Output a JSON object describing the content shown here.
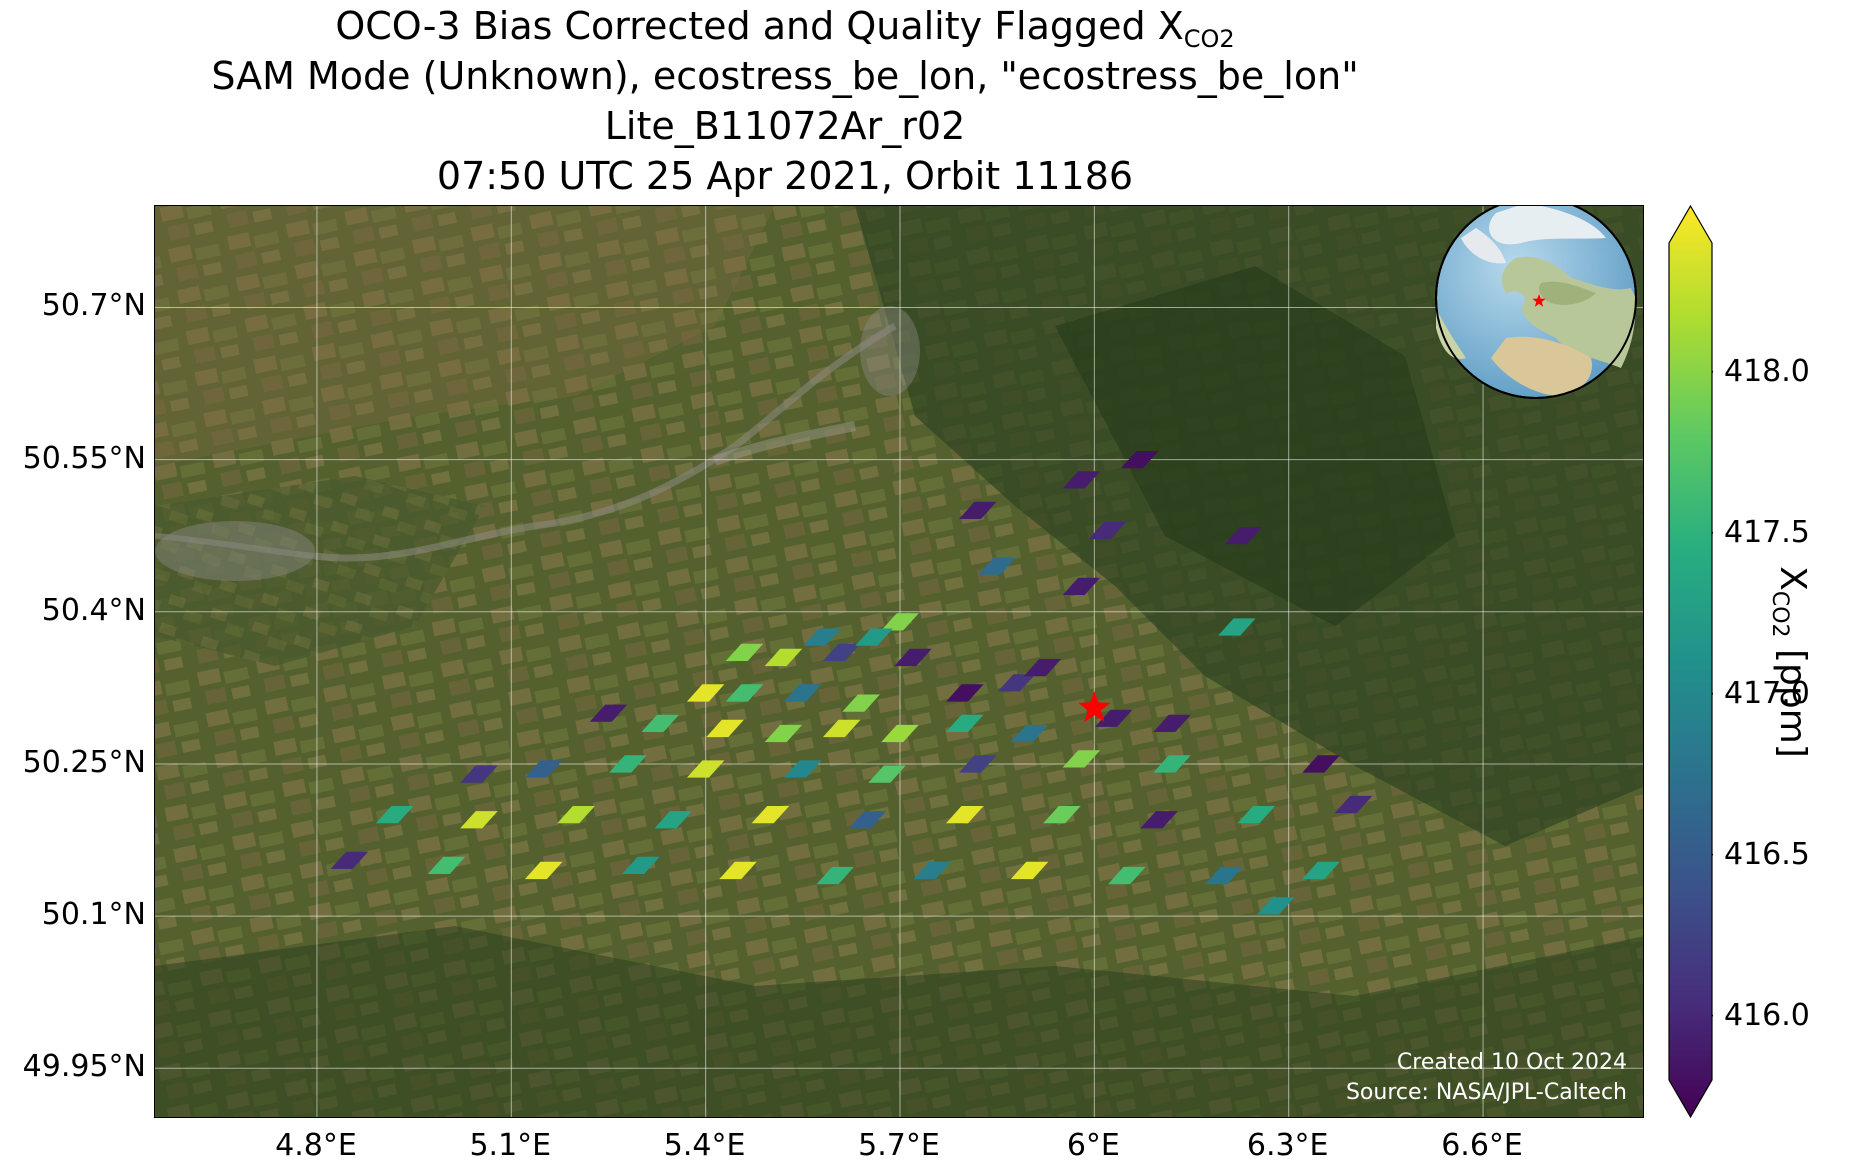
{
  "title": {
    "line1_prefix": "OCO-3 Bias Corrected and Quality Flagged X",
    "line1_sub": "CO2",
    "line2": "SAM Mode (Unknown), ecostress_be_lon, \"ecostress_be_lon\"",
    "line3": "Lite_B11072Ar_r02",
    "line4": "07:50 UTC 25 Apr 2021, Orbit 11186"
  },
  "map": {
    "lon_range": [
      4.55,
      6.85
    ],
    "lat_range": [
      49.9,
      50.8
    ],
    "lat_ticks": [
      {
        "value": 50.7,
        "label": "50.7°N"
      },
      {
        "value": 50.55,
        "label": "50.55°N"
      },
      {
        "value": 50.4,
        "label": "50.4°N"
      },
      {
        "value": 50.25,
        "label": "50.25°N"
      },
      {
        "value": 50.1,
        "label": "50.1°N"
      },
      {
        "value": 49.95,
        "label": "49.95°N"
      }
    ],
    "lon_ticks": [
      {
        "value": 4.8,
        "label": "4.8°E"
      },
      {
        "value": 5.1,
        "label": "5.1°E"
      },
      {
        "value": 5.4,
        "label": "5.4°E"
      },
      {
        "value": 5.7,
        "label": "5.7°E"
      },
      {
        "value": 6.0,
        "label": "6°E"
      },
      {
        "value": 6.3,
        "label": "6.3°E"
      },
      {
        "value": 6.6,
        "label": "6.6°E"
      }
    ],
    "target": {
      "lon": 6.0,
      "lat": 50.305,
      "color": "#ff0000"
    },
    "grid": true,
    "credit_line1": "Created 10 Oct 2024",
    "credit_line2": "Source: NASA/JPL-Caltech",
    "inset": "globe-europe-view"
  },
  "colorbar": {
    "colormap": "viridis",
    "range": [
      415.8,
      418.4
    ],
    "ticks": [
      {
        "value": 416.0,
        "label": "416.0"
      },
      {
        "value": 416.5,
        "label": "416.5"
      },
      {
        "value": 417.0,
        "label": "417.0"
      },
      {
        "value": 417.5,
        "label": "417.5"
      },
      {
        "value": 418.0,
        "label": "418.0"
      }
    ],
    "label_prefix": "X",
    "label_sub": "CO2",
    "label_suffix": " [ppm]"
  },
  "chart_data": {
    "type": "heatmap",
    "variable": "XCO2 (ppm)",
    "soundings": [
      {
        "lon": 5.58,
        "lat": 50.375,
        "v": 416.9
      },
      {
        "lon": 5.61,
        "lat": 50.36,
        "v": 416.3
      },
      {
        "lon": 5.7,
        "lat": 50.39,
        "v": 417.9
      },
      {
        "lon": 5.66,
        "lat": 50.375,
        "v": 417.2
      },
      {
        "lon": 5.46,
        "lat": 50.36,
        "v": 417.9
      },
      {
        "lon": 5.52,
        "lat": 50.355,
        "v": 418.1
      },
      {
        "lon": 5.72,
        "lat": 50.355,
        "v": 416.0
      },
      {
        "lon": 5.4,
        "lat": 50.32,
        "v": 418.3
      },
      {
        "lon": 5.46,
        "lat": 50.32,
        "v": 417.6
      },
      {
        "lon": 5.55,
        "lat": 50.32,
        "v": 416.8
      },
      {
        "lon": 5.64,
        "lat": 50.31,
        "v": 417.9
      },
      {
        "lon": 5.8,
        "lat": 50.32,
        "v": 415.9
      },
      {
        "lon": 5.88,
        "lat": 50.33,
        "v": 416.2
      },
      {
        "lon": 5.92,
        "lat": 50.345,
        "v": 416.0
      },
      {
        "lon": 5.25,
        "lat": 50.3,
        "v": 416.0
      },
      {
        "lon": 5.33,
        "lat": 50.29,
        "v": 417.6
      },
      {
        "lon": 5.43,
        "lat": 50.285,
        "v": 418.3
      },
      {
        "lon": 5.52,
        "lat": 50.28,
        "v": 417.9
      },
      {
        "lon": 5.61,
        "lat": 50.285,
        "v": 418.2
      },
      {
        "lon": 5.7,
        "lat": 50.28,
        "v": 418.0
      },
      {
        "lon": 5.8,
        "lat": 50.29,
        "v": 417.4
      },
      {
        "lon": 5.9,
        "lat": 50.28,
        "v": 416.8
      },
      {
        "lon": 6.03,
        "lat": 50.295,
        "v": 416.0
      },
      {
        "lon": 6.12,
        "lat": 50.29,
        "v": 416.0
      },
      {
        "lon": 5.05,
        "lat": 50.24,
        "v": 416.2
      },
      {
        "lon": 5.15,
        "lat": 50.245,
        "v": 416.6
      },
      {
        "lon": 5.28,
        "lat": 50.25,
        "v": 417.5
      },
      {
        "lon": 5.4,
        "lat": 50.245,
        "v": 418.2
      },
      {
        "lon": 5.55,
        "lat": 50.245,
        "v": 417.0
      },
      {
        "lon": 5.68,
        "lat": 50.24,
        "v": 417.7
      },
      {
        "lon": 5.82,
        "lat": 50.25,
        "v": 416.3
      },
      {
        "lon": 5.98,
        "lat": 50.255,
        "v": 417.9
      },
      {
        "lon": 6.12,
        "lat": 50.25,
        "v": 417.5
      },
      {
        "lon": 6.35,
        "lat": 50.25,
        "v": 415.9
      },
      {
        "lon": 4.92,
        "lat": 50.2,
        "v": 417.4
      },
      {
        "lon": 5.05,
        "lat": 50.195,
        "v": 418.2
      },
      {
        "lon": 5.2,
        "lat": 50.2,
        "v": 418.1
      },
      {
        "lon": 5.35,
        "lat": 50.195,
        "v": 417.3
      },
      {
        "lon": 5.5,
        "lat": 50.2,
        "v": 418.3
      },
      {
        "lon": 5.65,
        "lat": 50.195,
        "v": 416.6
      },
      {
        "lon": 5.8,
        "lat": 50.2,
        "v": 418.3
      },
      {
        "lon": 5.95,
        "lat": 50.2,
        "v": 417.8
      },
      {
        "lon": 6.1,
        "lat": 50.195,
        "v": 416.0
      },
      {
        "lon": 6.25,
        "lat": 50.2,
        "v": 417.4
      },
      {
        "lon": 6.4,
        "lat": 50.21,
        "v": 416.1
      },
      {
        "lon": 4.85,
        "lat": 50.155,
        "v": 416.1
      },
      {
        "lon": 5.0,
        "lat": 50.15,
        "v": 417.6
      },
      {
        "lon": 5.15,
        "lat": 50.145,
        "v": 418.3
      },
      {
        "lon": 5.3,
        "lat": 50.15,
        "v": 417.2
      },
      {
        "lon": 5.45,
        "lat": 50.145,
        "v": 418.3
      },
      {
        "lon": 5.6,
        "lat": 50.14,
        "v": 417.5
      },
      {
        "lon": 5.75,
        "lat": 50.145,
        "v": 416.9
      },
      {
        "lon": 5.9,
        "lat": 50.145,
        "v": 418.3
      },
      {
        "lon": 6.05,
        "lat": 50.14,
        "v": 417.6
      },
      {
        "lon": 6.2,
        "lat": 50.14,
        "v": 416.8
      },
      {
        "lon": 6.35,
        "lat": 50.145,
        "v": 417.3
      },
      {
        "lon": 6.28,
        "lat": 50.11,
        "v": 417.1
      },
      {
        "lon": 5.98,
        "lat": 50.53,
        "v": 416.0
      },
      {
        "lon": 6.07,
        "lat": 50.55,
        "v": 415.9
      },
      {
        "lon": 5.82,
        "lat": 50.5,
        "v": 416.0
      },
      {
        "lon": 6.02,
        "lat": 50.48,
        "v": 416.1
      },
      {
        "lon": 6.23,
        "lat": 50.475,
        "v": 416.0
      },
      {
        "lon": 5.85,
        "lat": 50.445,
        "v": 416.7
      },
      {
        "lon": 5.98,
        "lat": 50.425,
        "v": 416.0
      },
      {
        "lon": 6.22,
        "lat": 50.385,
        "v": 417.3
      }
    ]
  }
}
